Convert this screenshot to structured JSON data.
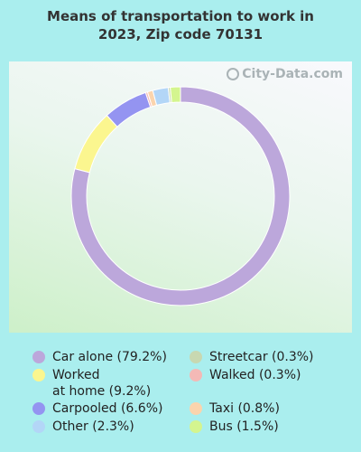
{
  "title_lines": [
    "Means of transportation to work in",
    "2023, Zip code 70131"
  ],
  "watermark": "City-Data.com",
  "chart_data": {
    "type": "pie",
    "title": "Means of transportation to work in 2023, Zip code 70131",
    "slices": [
      {
        "name": "Car alone",
        "value": 79.2,
        "color": "#bca7db"
      },
      {
        "name": "Worked at home",
        "value": 9.2,
        "color": "#fbf68f"
      },
      {
        "name": "Carpooled",
        "value": 6.6,
        "color": "#9494f1"
      },
      {
        "name": "Walked",
        "value": 0.3,
        "color": "#f4b9b6"
      },
      {
        "name": "Taxi",
        "value": 0.8,
        "color": "#fbd4ad"
      },
      {
        "name": "Other",
        "value": 2.3,
        "color": "#b3d6f7"
      },
      {
        "name": "Streetcar",
        "value": 0.3,
        "color": "#c8d8b1"
      },
      {
        "name": "Bus",
        "value": 1.5,
        "color": "#d4f58f"
      }
    ]
  },
  "legend": [
    {
      "label": "Car alone (79.2%)",
      "color": "#bca7db"
    },
    {
      "label": "Worked\nat home (9.2%)",
      "color": "#fbf68f"
    },
    {
      "label": "Carpooled (6.6%)",
      "color": "#9494f1"
    },
    {
      "label": "Other (2.3%)",
      "color": "#b3d6f7"
    },
    {
      "label": "Streetcar (0.3%)",
      "color": "#c8d8b1"
    },
    {
      "label": "Walked (0.3%)",
      "color": "#f4b9b6"
    },
    {
      "label": "Taxi (0.8%)",
      "color": "#fbd4ad"
    },
    {
      "label": "Bus (1.5%)",
      "color": "#d4f58f"
    }
  ]
}
